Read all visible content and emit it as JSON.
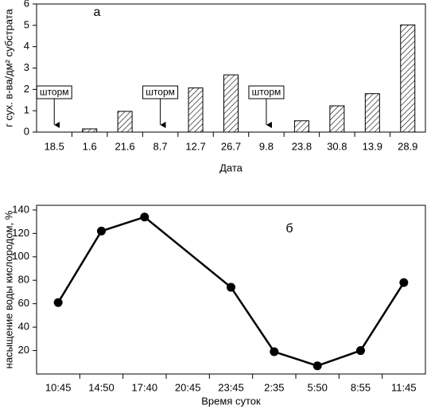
{
  "chart_data": [
    {
      "type": "bar",
      "title": "а",
      "x_label": "Дата",
      "y_label": "г сух. в-ва/дм² субстрата",
      "categories": [
        "18.5",
        "1.6",
        "21.6",
        "8.7",
        "12.7",
        "26.7",
        "9.8",
        "23.8",
        "30.8",
        "13.9",
        "28.9"
      ],
      "values": [
        null,
        0.15,
        0.97,
        null,
        2.07,
        2.68,
        null,
        0.53,
        1.23,
        1.8,
        5.02
      ],
      "color": "#000000",
      "ylim": [
        0,
        6
      ],
      "yticks": [
        0,
        1,
        2,
        3,
        4,
        5,
        6
      ],
      "annotations": [
        {
          "text": "шторм",
          "x": "18.5"
        },
        {
          "text": "шторм",
          "x": "8.7"
        },
        {
          "text": "шторм",
          "x": "9.8"
        }
      ]
    },
    {
      "type": "line",
      "title": "б",
      "x_label": "Время суток",
      "y_label": "насыщение воды кислородом, %",
      "xticks": [
        "10:45",
        "14:50",
        "17:40",
        "20:45",
        "23:45",
        "2:35",
        "5:50",
        "8:55",
        "11:45"
      ],
      "categories": [
        "10:45",
        "14:50",
        "17:40",
        "23:45",
        "2:35",
        "5:50",
        "8:55",
        "11:45"
      ],
      "values": [
        61,
        122,
        134,
        74,
        19,
        7,
        20,
        78
      ],
      "color": "#000000",
      "ylim": [
        0,
        144
      ],
      "yticks": [
        20,
        40,
        60,
        80,
        100,
        120,
        140
      ]
    }
  ]
}
